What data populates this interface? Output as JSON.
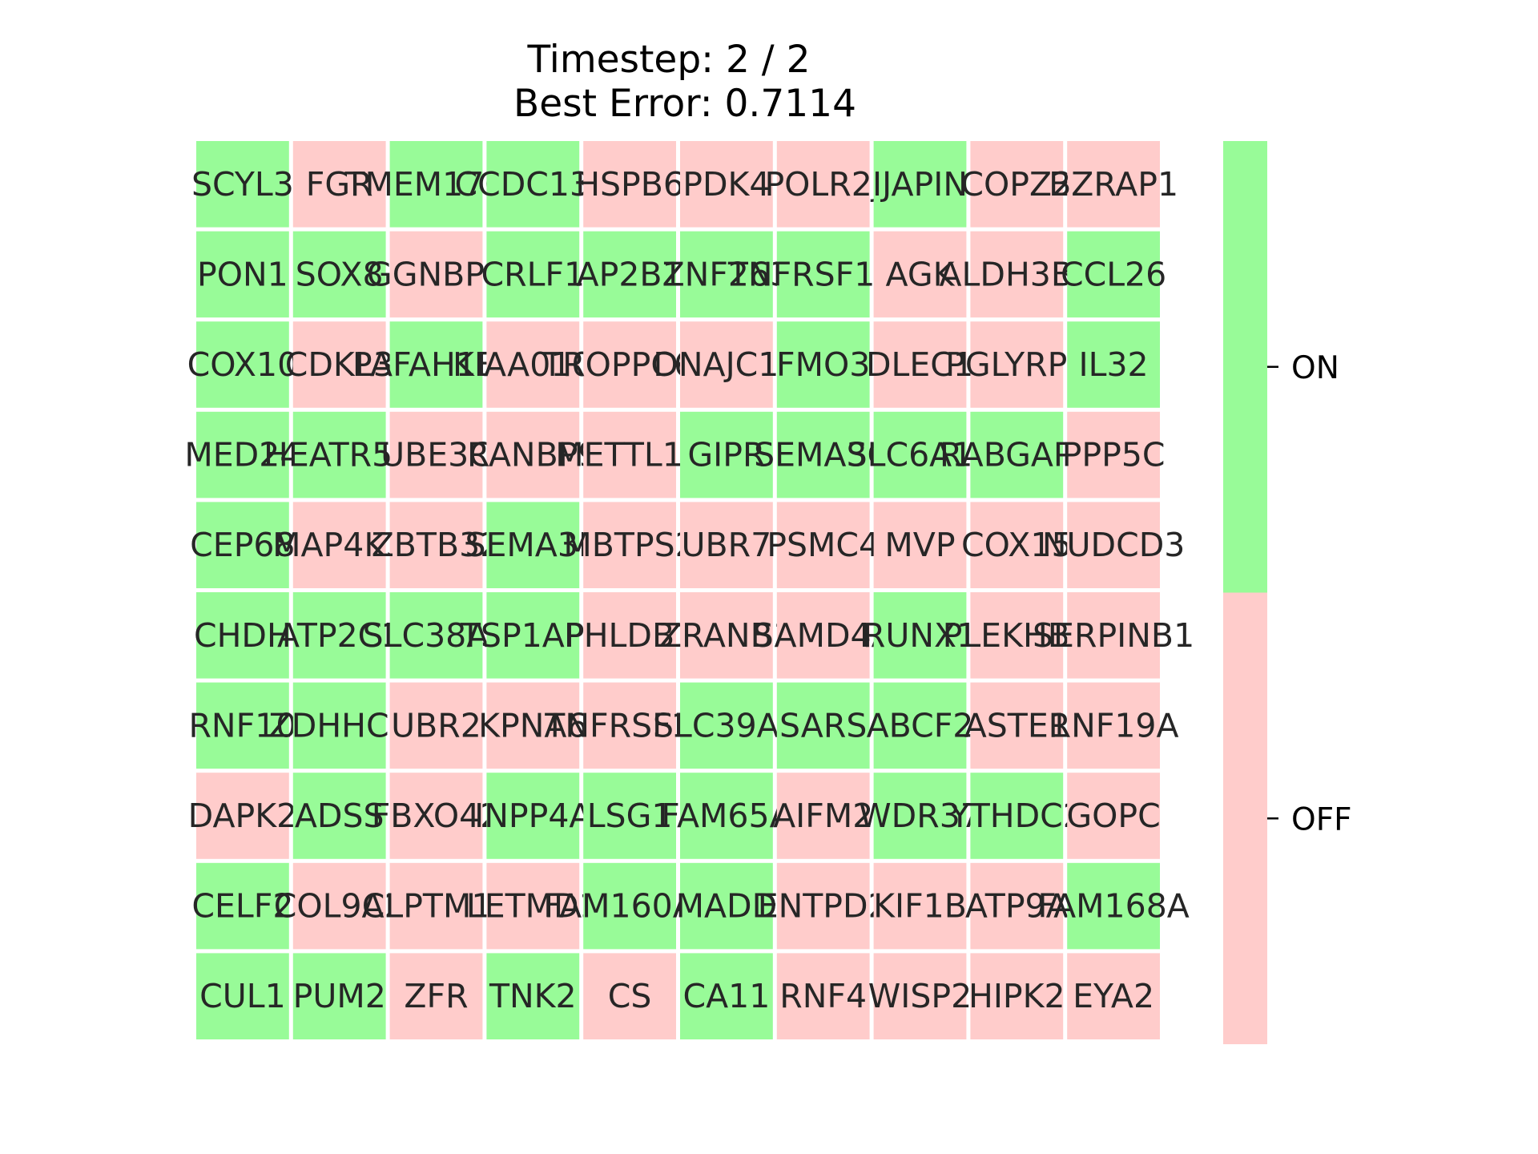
{
  "chart_data": {
    "type": "heatmap",
    "title": "Timestep: 2 / 2",
    "subtitle": "Best Error: 0.7114",
    "colors": {
      "on": "#98fb98",
      "off": "#ffcccb"
    },
    "legend": {
      "labels": [
        "ON",
        "OFF"
      ],
      "placement": "right"
    },
    "rows": [
      [
        [
          "SCYL3",
          1
        ],
        [
          "FGR",
          0
        ],
        [
          "TMEM176A",
          1
        ],
        [
          "CCDC132",
          1
        ],
        [
          "HSPB6",
          0
        ],
        [
          "PDK4",
          0
        ],
        [
          "POLR2J",
          0
        ],
        [
          "IJAPIN",
          1
        ],
        [
          "COPZ2",
          0
        ],
        [
          "BZRAP1",
          0
        ]
      ],
      [
        [
          "PON1",
          1
        ],
        [
          "SOX8",
          1
        ],
        [
          "GGNBP2",
          0
        ],
        [
          "CRLF1",
          1
        ],
        [
          "AP2B1",
          1
        ],
        [
          "ZNF263",
          1
        ],
        [
          "TNFRSF12A",
          1
        ],
        [
          "AGK",
          0
        ],
        [
          "ALDH3B1",
          0
        ],
        [
          "CCL26",
          1
        ]
      ],
      [
        [
          "COX10",
          1
        ],
        [
          "CDKL3",
          0
        ],
        [
          "PAFAH1B1",
          1
        ],
        [
          "KIAA0100",
          0
        ],
        [
          "TROPPC6A",
          0
        ],
        [
          "DNAJC11",
          0
        ],
        [
          "FMO3",
          1
        ],
        [
          "DLEC1",
          0
        ],
        [
          "PGLYRP1",
          0
        ],
        [
          "IL32",
          1
        ]
      ],
      [
        [
          "MED24",
          1
        ],
        [
          "HEATR5B",
          1
        ],
        [
          "UBE3C",
          0
        ],
        [
          "RANBP9",
          0
        ],
        [
          "METTL13",
          0
        ],
        [
          "GIPR",
          1
        ],
        [
          "SEMA3G",
          1
        ],
        [
          "SLC6A13",
          1
        ],
        [
          "RABGAP1",
          1
        ],
        [
          "PPP5C",
          0
        ]
      ],
      [
        [
          "CEP68",
          1
        ],
        [
          "MAP4K3",
          0
        ],
        [
          "ZBTB32",
          0
        ],
        [
          "SEMA3B",
          1
        ],
        [
          "MBTPS2",
          0
        ],
        [
          "UBR7",
          0
        ],
        [
          "PSMC4",
          0
        ],
        [
          "MVP",
          0
        ],
        [
          "COX15",
          0
        ],
        [
          "NUDCD3",
          0
        ]
      ],
      [
        [
          "CHDH",
          1
        ],
        [
          "ATP2C1",
          1
        ],
        [
          "SLC38A5",
          1
        ],
        [
          "TSP1AP2",
          1
        ],
        [
          "PHLDB1",
          0
        ],
        [
          "ZRANB1",
          0
        ],
        [
          "SAMD4A",
          0
        ],
        [
          "RUNX1",
          1
        ],
        [
          "PLEKHB1",
          0
        ],
        [
          "SERPINB1",
          0
        ]
      ],
      [
        [
          "RNF10",
          1
        ],
        [
          "ZDHHC6",
          1
        ],
        [
          "UBR2",
          0
        ],
        [
          "KPNA6",
          0
        ],
        [
          "TNFRSF1B",
          0
        ],
        [
          "SLC39A9",
          1
        ],
        [
          "SARS",
          1
        ],
        [
          "ABCF2",
          1
        ],
        [
          "ASTE1",
          0
        ],
        [
          "RNF19A",
          0
        ]
      ],
      [
        [
          "DAPK2",
          0
        ],
        [
          "ADSS",
          1
        ],
        [
          "FBXO42",
          0
        ],
        [
          "INPP4A",
          1
        ],
        [
          "LSG1",
          1
        ],
        [
          "FAM65A",
          1
        ],
        [
          "AIFM2",
          0
        ],
        [
          "WDR37",
          1
        ],
        [
          "YTHDC2",
          1
        ],
        [
          "GOPC",
          0
        ]
      ],
      [
        [
          "CELF2",
          1
        ],
        [
          "COL9A2",
          0
        ],
        [
          "CLPTM1L",
          0
        ],
        [
          "LETMD1",
          0
        ],
        [
          "FAM160A2",
          1
        ],
        [
          "MADD",
          1
        ],
        [
          "ENTPD2",
          0
        ],
        [
          "KIF1B",
          0
        ],
        [
          "ATP9A",
          0
        ],
        [
          "FAM168A",
          1
        ]
      ],
      [
        [
          "CUL1",
          1
        ],
        [
          "PUM2",
          1
        ],
        [
          "ZFR",
          0
        ],
        [
          "TNK2",
          1
        ],
        [
          "CS",
          0
        ],
        [
          "CA11",
          1
        ],
        [
          "RNF4",
          0
        ],
        [
          "WISP2",
          0
        ],
        [
          "HIPK2",
          0
        ],
        [
          "EYA2",
          0
        ]
      ]
    ]
  }
}
